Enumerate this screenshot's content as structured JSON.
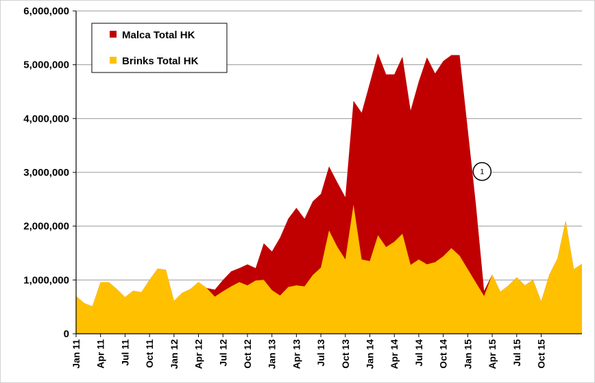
{
  "chart_data": {
    "type": "area",
    "stacked": true,
    "title": "",
    "xlabel": "",
    "ylabel": "",
    "ylim": [
      0,
      6000000
    ],
    "y_ticks": [
      0,
      1000000,
      2000000,
      3000000,
      4000000,
      5000000,
      6000000
    ],
    "y_tick_labels": [
      "0",
      "1,000,000",
      "2,000,000",
      "3,000,000",
      "4,000,000",
      "5,000,000",
      "6,000,000"
    ],
    "x_tick_labels": [
      "Jan 11",
      "Apr 11",
      "Jul 11",
      "Oct 11",
      "Jan 12",
      "Apr 12",
      "Jul 12",
      "Oct 12",
      "Jan 13",
      "Apr 13",
      "Jul 13",
      "Oct 13",
      "Jan 14",
      "Apr 14",
      "Jul 14",
      "Oct 14",
      "Jan 15",
      "Apr 15",
      "Jul 15",
      "Oct 15"
    ],
    "grid": "horizontal",
    "legend_position": "top-left",
    "x_index_note": "month index, 0 = Jan 11",
    "series": [
      {
        "name": "Brinks Total HK",
        "color": "#FFC000",
        "points": [
          [
            0,
            700000
          ],
          [
            1,
            570000
          ],
          [
            2,
            510000
          ],
          [
            3,
            960000
          ],
          [
            4,
            960000
          ],
          [
            5,
            830000
          ],
          [
            6,
            680000
          ],
          [
            7,
            800000
          ],
          [
            8,
            770000
          ],
          [
            9,
            1000000
          ],
          [
            10,
            1210000
          ],
          [
            11,
            1190000
          ],
          [
            12,
            610000
          ],
          [
            13,
            760000
          ],
          [
            14,
            830000
          ],
          [
            15,
            960000
          ],
          [
            16,
            850000
          ],
          [
            17,
            690000
          ],
          [
            18,
            790000
          ],
          [
            19,
            880000
          ],
          [
            20,
            960000
          ],
          [
            21,
            900000
          ],
          [
            22,
            990000
          ],
          [
            23,
            1000000
          ],
          [
            24,
            810000
          ],
          [
            25,
            710000
          ],
          [
            26,
            870000
          ],
          [
            27,
            900000
          ],
          [
            28,
            880000
          ],
          [
            29,
            1090000
          ],
          [
            30,
            1230000
          ],
          [
            31,
            1920000
          ],
          [
            32,
            1620000
          ],
          [
            33,
            1380000
          ],
          [
            34,
            2400000
          ],
          [
            35,
            1380000
          ],
          [
            36,
            1350000
          ],
          [
            37,
            1830000
          ],
          [
            38,
            1610000
          ],
          [
            39,
            1710000
          ],
          [
            40,
            1860000
          ],
          [
            41,
            1280000
          ],
          [
            42,
            1380000
          ],
          [
            43,
            1290000
          ],
          [
            44,
            1330000
          ],
          [
            45,
            1440000
          ],
          [
            46,
            1590000
          ],
          [
            47,
            1450000
          ],
          [
            48,
            1200000
          ],
          [
            49,
            950000
          ],
          [
            50,
            700000
          ],
          [
            51,
            1100000
          ],
          [
            52,
            780000
          ],
          [
            53,
            900000
          ],
          [
            54,
            1050000
          ],
          [
            55,
            900000
          ],
          [
            56,
            1000000
          ],
          [
            57,
            600000
          ],
          [
            58,
            1100000
          ],
          [
            59,
            1400000
          ],
          [
            60,
            2100000
          ],
          [
            61,
            1200000
          ],
          [
            62,
            1300000
          ]
        ]
      },
      {
        "name": "Malca Total HK",
        "color": "#C00000",
        "points": [
          [
            0,
            700000
          ],
          [
            1,
            570000
          ],
          [
            2,
            510000
          ],
          [
            3,
            960000
          ],
          [
            4,
            960000
          ],
          [
            5,
            830000
          ],
          [
            6,
            680000
          ],
          [
            7,
            800000
          ],
          [
            8,
            770000
          ],
          [
            9,
            1000000
          ],
          [
            10,
            1210000
          ],
          [
            11,
            1190000
          ],
          [
            12,
            610000
          ],
          [
            13,
            760000
          ],
          [
            14,
            830000
          ],
          [
            15,
            960000
          ],
          [
            16,
            850000
          ],
          [
            17,
            820000
          ],
          [
            18,
            1000000
          ],
          [
            19,
            1160000
          ],
          [
            20,
            1220000
          ],
          [
            21,
            1290000
          ],
          [
            22,
            1220000
          ],
          [
            23,
            1680000
          ],
          [
            24,
            1530000
          ],
          [
            25,
            1790000
          ],
          [
            26,
            2140000
          ],
          [
            27,
            2340000
          ],
          [
            28,
            2140000
          ],
          [
            29,
            2460000
          ],
          [
            30,
            2600000
          ],
          [
            31,
            3110000
          ],
          [
            32,
            2820000
          ],
          [
            33,
            2540000
          ],
          [
            34,
            4330000
          ],
          [
            35,
            4110000
          ],
          [
            36,
            4660000
          ],
          [
            37,
            5210000
          ],
          [
            38,
            4820000
          ],
          [
            39,
            4820000
          ],
          [
            40,
            5150000
          ],
          [
            41,
            4150000
          ],
          [
            42,
            4690000
          ],
          [
            43,
            5140000
          ],
          [
            44,
            4840000
          ],
          [
            45,
            5070000
          ],
          [
            46,
            5180000
          ],
          [
            47,
            5180000
          ],
          [
            48,
            3800000
          ],
          [
            49,
            2400000
          ],
          [
            50,
            800000
          ],
          [
            51,
            1100000
          ],
          [
            52,
            780000
          ],
          [
            53,
            900000
          ],
          [
            54,
            1050000
          ],
          [
            55,
            900000
          ],
          [
            56,
            1000000
          ],
          [
            57,
            600000
          ],
          [
            58,
            1100000
          ],
          [
            59,
            1400000
          ],
          [
            60,
            2100000
          ],
          [
            61,
            1200000
          ],
          [
            62,
            1300000
          ]
        ]
      }
    ],
    "annotations": [
      {
        "text": "1",
        "x": 49,
        "y": 2800000
      }
    ]
  }
}
